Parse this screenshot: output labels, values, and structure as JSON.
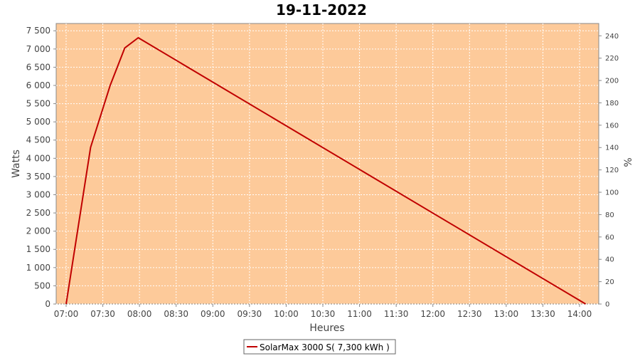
{
  "chart_data": {
    "type": "line",
    "title": "19-11-2022",
    "xlabel": "Heures",
    "ylabel": "Watts",
    "y2label": "%",
    "x_ticks": [
      "07:00",
      "07:30",
      "08:00",
      "08:30",
      "09:00",
      "09:30",
      "10:00",
      "10:30",
      "11:00",
      "11:30",
      "12:00",
      "12:30",
      "13:00",
      "13:30",
      "14:00"
    ],
    "y_ticks": [
      "0",
      "500",
      "1 000",
      "1 500",
      "2 000",
      "2 500",
      "3 000",
      "3 500",
      "4 000",
      "4 500",
      "5 000",
      "5 500",
      "6 000",
      "6 500",
      "7 000",
      "7 500"
    ],
    "y2_ticks": [
      "0",
      "20",
      "40",
      "60",
      "80",
      "100",
      "120",
      "140",
      "160",
      "180",
      "200",
      "220",
      "240"
    ],
    "ylim": [
      0,
      7700
    ],
    "y2lim": [
      0,
      251
    ],
    "grid": true,
    "legend_position": "bottom-center",
    "series": [
      {
        "name": "SolarMax 3000 S( 7,300 kWh )",
        "color": "#c00000",
        "points": [
          [
            "07:00",
            0
          ],
          [
            "07:20",
            4300
          ],
          [
            "07:36",
            6000
          ],
          [
            "07:48",
            7030
          ],
          [
            "07:59",
            7310
          ],
          [
            "14:05",
            0
          ]
        ]
      }
    ],
    "colors": {
      "plot_background": "#fdca9a",
      "grid": "#ffffff",
      "axis": "#888888"
    }
  }
}
